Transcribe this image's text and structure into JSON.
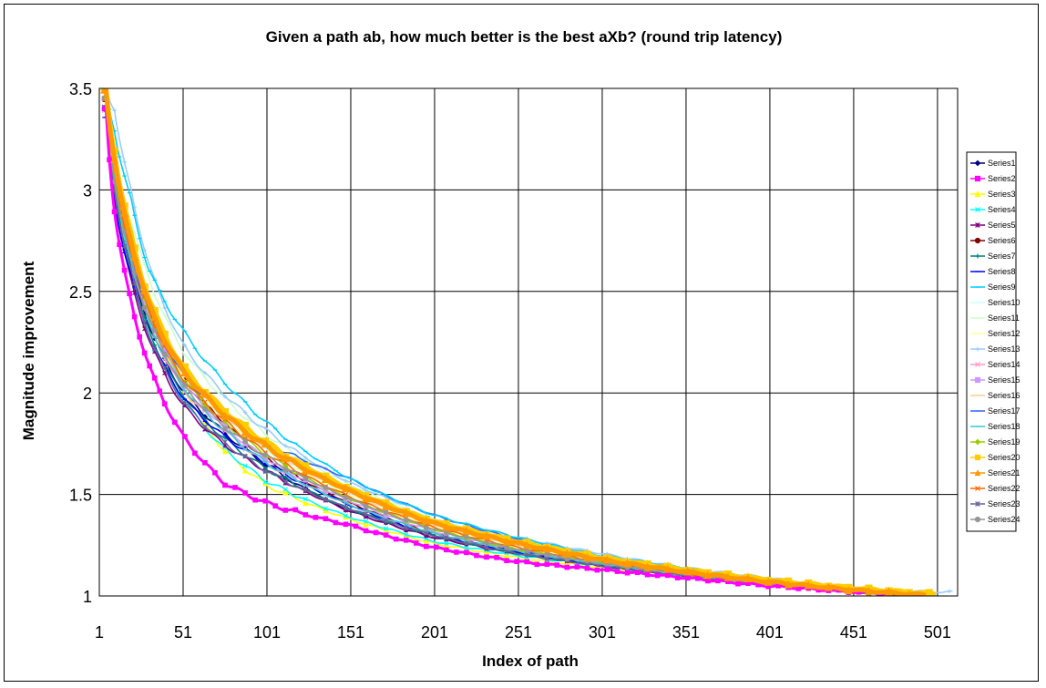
{
  "chart_data": {
    "type": "line",
    "title": "Given a path ab, how much better is the best aXb? (round trip latency)",
    "xlabel": "Index of path",
    "ylabel": "Magnitude improvement",
    "xlim": [
      1,
      513
    ],
    "ylim": [
      1,
      3.5
    ],
    "x_ticks": [
      "1",
      "51",
      "101",
      "151",
      "201",
      "251",
      "301",
      "351",
      "401",
      "451",
      "501"
    ],
    "y_ticks": [
      "1",
      "1.5",
      "2",
      "2.5",
      "3",
      "3.5"
    ],
    "grid": true,
    "legend_position": "right",
    "x_sample": [
      5,
      10,
      20,
      30,
      50,
      75,
      100,
      150,
      200,
      250,
      300,
      350,
      400,
      450,
      500
    ],
    "series": [
      {
        "name": "Series1",
        "color": "#000080",
        "marker": "diamond",
        "end": 480,
        "values": [
          3.5,
          3.0,
          2.62,
          2.35,
          2.02,
          1.81,
          1.65,
          1.42,
          1.29,
          1.21,
          1.15,
          1.1,
          1.06,
          1.02,
          1.0
        ]
      },
      {
        "name": "Series2",
        "color": "#ff00ff",
        "marker": "square",
        "end": 470,
        "values": [
          3.4,
          2.9,
          2.45,
          2.15,
          1.8,
          1.56,
          1.46,
          1.35,
          1.24,
          1.17,
          1.13,
          1.09,
          1.05,
          1.02,
          1.0
        ]
      },
      {
        "name": "Series3",
        "color": "#ffff00",
        "marker": "triangle",
        "end": 470,
        "values": [
          3.5,
          3.2,
          2.7,
          2.4,
          2.05,
          1.72,
          1.55,
          1.38,
          1.26,
          1.19,
          1.14,
          1.1,
          1.06,
          1.02,
          1.0
        ]
      },
      {
        "name": "Series4",
        "color": "#00ffff",
        "marker": "x",
        "end": 475,
        "values": [
          3.45,
          3.05,
          2.6,
          2.3,
          1.98,
          1.73,
          1.57,
          1.39,
          1.27,
          1.2,
          1.15,
          1.1,
          1.06,
          1.02,
          1.0
        ]
      },
      {
        "name": "Series5",
        "color": "#800080",
        "marker": "star",
        "end": 480,
        "values": [
          3.4,
          3.0,
          2.55,
          2.28,
          1.95,
          1.75,
          1.62,
          1.42,
          1.29,
          1.21,
          1.15,
          1.1,
          1.06,
          1.02,
          1.0
        ]
      },
      {
        "name": "Series6",
        "color": "#800000",
        "marker": "circle",
        "end": 485,
        "values": [
          3.45,
          3.1,
          2.7,
          2.4,
          2.08,
          1.86,
          1.68,
          1.46,
          1.31,
          1.22,
          1.16,
          1.11,
          1.06,
          1.02,
          1.0
        ]
      },
      {
        "name": "Series7",
        "color": "#008080",
        "marker": "plus",
        "end": 480,
        "values": [
          3.4,
          3.0,
          2.6,
          2.32,
          2.0,
          1.78,
          1.63,
          1.43,
          1.3,
          1.21,
          1.15,
          1.1,
          1.06,
          1.02,
          1.0
        ]
      },
      {
        "name": "Series8",
        "color": "#0000ff",
        "marker": "dash",
        "end": 480,
        "values": [
          3.35,
          2.95,
          2.58,
          2.3,
          1.99,
          1.79,
          1.66,
          1.45,
          1.3,
          1.22,
          1.15,
          1.1,
          1.06,
          1.02,
          1.0
        ]
      },
      {
        "name": "Series9",
        "color": "#00ccff",
        "marker": "dash",
        "end": 500,
        "values": [
          3.5,
          3.3,
          2.95,
          2.62,
          2.32,
          2.06,
          1.86,
          1.58,
          1.4,
          1.29,
          1.2,
          1.14,
          1.08,
          1.04,
          1.01
        ]
      },
      {
        "name": "Series10",
        "color": "#ccffff",
        "marker": "dash",
        "end": 490,
        "values": [
          3.45,
          3.1,
          2.7,
          2.42,
          2.08,
          1.88,
          1.72,
          1.5,
          1.34,
          1.24,
          1.17,
          1.11,
          1.06,
          1.03,
          1.0
        ]
      },
      {
        "name": "Series11",
        "color": "#ccffcc",
        "marker": "dash",
        "end": 495,
        "values": [
          3.5,
          3.2,
          2.85,
          2.58,
          2.22,
          1.98,
          1.8,
          1.55,
          1.38,
          1.27,
          1.19,
          1.13,
          1.07,
          1.03,
          1.0
        ]
      },
      {
        "name": "Series12",
        "color": "#ffff99",
        "marker": "dash",
        "end": 490,
        "values": [
          3.45,
          3.1,
          2.72,
          2.45,
          2.1,
          1.88,
          1.72,
          1.5,
          1.34,
          1.24,
          1.17,
          1.11,
          1.06,
          1.03,
          1.0
        ]
      },
      {
        "name": "Series13",
        "color": "#99ccff",
        "marker": "plus",
        "end": 510,
        "values": [
          3.5,
          3.4,
          3.0,
          2.65,
          2.25,
          2.0,
          1.82,
          1.56,
          1.4,
          1.29,
          1.21,
          1.14,
          1.09,
          1.04,
          1.02
        ]
      },
      {
        "name": "Series14",
        "color": "#ff99cc",
        "marker": "x",
        "end": 485,
        "values": [
          3.4,
          3.05,
          2.65,
          2.36,
          2.03,
          1.82,
          1.66,
          1.45,
          1.31,
          1.22,
          1.16,
          1.1,
          1.06,
          1.02,
          1.0
        ]
      },
      {
        "name": "Series15",
        "color": "#cc99ff",
        "marker": "square",
        "end": 485,
        "values": [
          3.45,
          3.1,
          2.68,
          2.4,
          2.06,
          1.84,
          1.68,
          1.47,
          1.32,
          1.23,
          1.16,
          1.11,
          1.06,
          1.02,
          1.0
        ]
      },
      {
        "name": "Series16",
        "color": "#ffcc99",
        "marker": "dash",
        "end": 490,
        "values": [
          3.5,
          3.15,
          2.75,
          2.46,
          2.12,
          1.9,
          1.74,
          1.51,
          1.35,
          1.25,
          1.18,
          1.12,
          1.07,
          1.03,
          1.0
        ]
      },
      {
        "name": "Series17",
        "color": "#3366ff",
        "marker": "dash",
        "end": 495,
        "values": [
          3.5,
          3.1,
          2.7,
          2.42,
          2.1,
          1.9,
          1.76,
          1.58,
          1.4,
          1.28,
          1.19,
          1.13,
          1.07,
          1.03,
          1.0
        ]
      },
      {
        "name": "Series18",
        "color": "#33cccc",
        "marker": "dash",
        "end": 485,
        "values": [
          3.45,
          3.05,
          2.65,
          2.36,
          2.04,
          1.82,
          1.66,
          1.45,
          1.31,
          1.22,
          1.16,
          1.1,
          1.06,
          1.02,
          1.0
        ]
      },
      {
        "name": "Series19",
        "color": "#99cc00",
        "marker": "diamond",
        "end": 490,
        "values": [
          3.45,
          3.1,
          2.7,
          2.42,
          2.08,
          1.86,
          1.7,
          1.48,
          1.33,
          1.23,
          1.17,
          1.11,
          1.06,
          1.02,
          1.0
        ]
      },
      {
        "name": "Series20",
        "color": "#ffcc00",
        "marker": "square",
        "end": 500,
        "values": [
          3.5,
          3.2,
          2.78,
          2.48,
          2.14,
          1.92,
          1.76,
          1.53,
          1.37,
          1.27,
          1.19,
          1.13,
          1.08,
          1.04,
          1.01
        ]
      },
      {
        "name": "Series21",
        "color": "#ff9900",
        "marker": "triangle",
        "end": 495,
        "values": [
          3.5,
          3.15,
          2.75,
          2.45,
          2.12,
          1.9,
          1.74,
          1.52,
          1.36,
          1.26,
          1.18,
          1.12,
          1.07,
          1.03,
          1.0
        ]
      },
      {
        "name": "Series22",
        "color": "#ff6600",
        "marker": "x",
        "end": 490,
        "values": [
          3.45,
          3.1,
          2.7,
          2.42,
          2.08,
          1.87,
          1.71,
          1.49,
          1.34,
          1.24,
          1.17,
          1.11,
          1.06,
          1.02,
          1.0
        ]
      },
      {
        "name": "Series23",
        "color": "#666699",
        "marker": "star",
        "end": 485,
        "values": [
          3.4,
          3.0,
          2.6,
          2.3,
          1.97,
          1.76,
          1.62,
          1.43,
          1.3,
          1.21,
          1.15,
          1.1,
          1.06,
          1.02,
          1.0
        ]
      },
      {
        "name": "Series24",
        "color": "#969696",
        "marker": "circle",
        "end": 490,
        "values": [
          3.45,
          3.05,
          2.66,
          2.38,
          2.05,
          1.84,
          1.69,
          1.48,
          1.33,
          1.23,
          1.16,
          1.11,
          1.06,
          1.02,
          1.0
        ]
      }
    ]
  }
}
